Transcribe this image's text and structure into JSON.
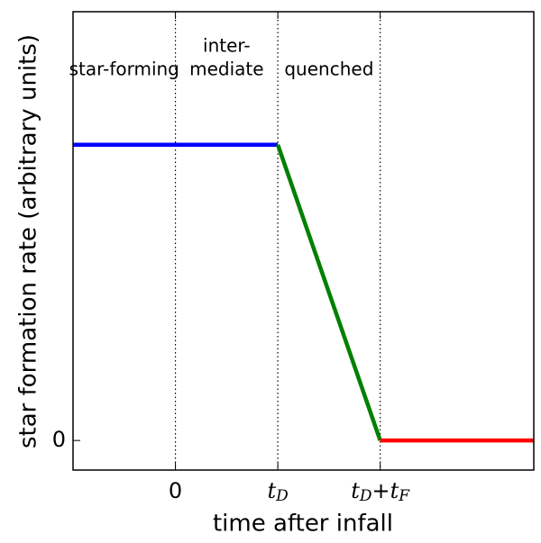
{
  "chart_data": {
    "type": "line",
    "xlabel": "time after infall",
    "ylabel": "star formation rate (arbitrary units)",
    "xlim": [
      -1,
      3.5
    ],
    "xticks": [
      0,
      {
        "value": 1,
        "label": "tD"
      },
      {
        "value": 2,
        "label": "tD+tF"
      }
    ],
    "ylim": [
      -0.1,
      1.45
    ],
    "yticks": [
      0
    ],
    "grid": "x",
    "grid_style": "dotted",
    "annotations": [
      [
        "star-forming"
      ],
      [
        "inter-",
        "mediate"
      ],
      [
        "quenched"
      ]
    ],
    "series": [
      {
        "color": "#0000ff",
        "x": [
          -1,
          1
        ],
        "values": [
          1,
          1
        ]
      },
      {
        "color": "#008000",
        "x": [
          1,
          2
        ],
        "values": [
          1,
          0
        ]
      },
      {
        "color": "#ff0000",
        "x": [
          2,
          3.5
        ],
        "values": [
          0,
          0
        ]
      }
    ]
  }
}
